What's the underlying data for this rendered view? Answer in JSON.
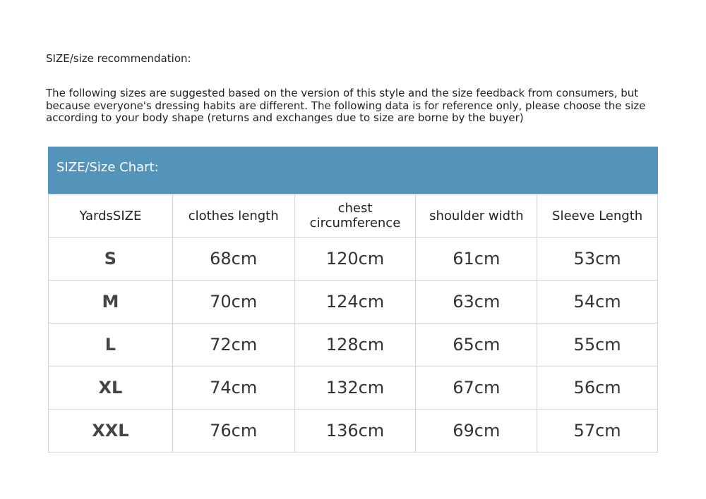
{
  "title": "SIZE/size recommendation:",
  "intro": "The following sizes are suggested based on the version of this style and the size feedback from consumers, but because everyone's dressing habits are different. The following data is for reference only, please choose the size according to your body shape (returns and exchanges due to size are borne by the buyer)",
  "chart_title": "SIZE/Size Chart:",
  "accent_color": "#5494bb",
  "headers": [
    "YardsSIZE",
    "clothes length",
    "chest circumference",
    "shoulder width",
    "Sleeve Length"
  ],
  "rows": [
    [
      "S",
      "68cm",
      "120cm",
      "61cm",
      "53cm"
    ],
    [
      "M",
      "70cm",
      "124cm",
      "63cm",
      "54cm"
    ],
    [
      "L",
      "72cm",
      "128cm",
      "65cm",
      "55cm"
    ],
    [
      "XL",
      "74cm",
      "132cm",
      "67cm",
      "56cm"
    ],
    [
      "XXL",
      "76cm",
      "136cm",
      "69cm",
      "57cm"
    ]
  ]
}
